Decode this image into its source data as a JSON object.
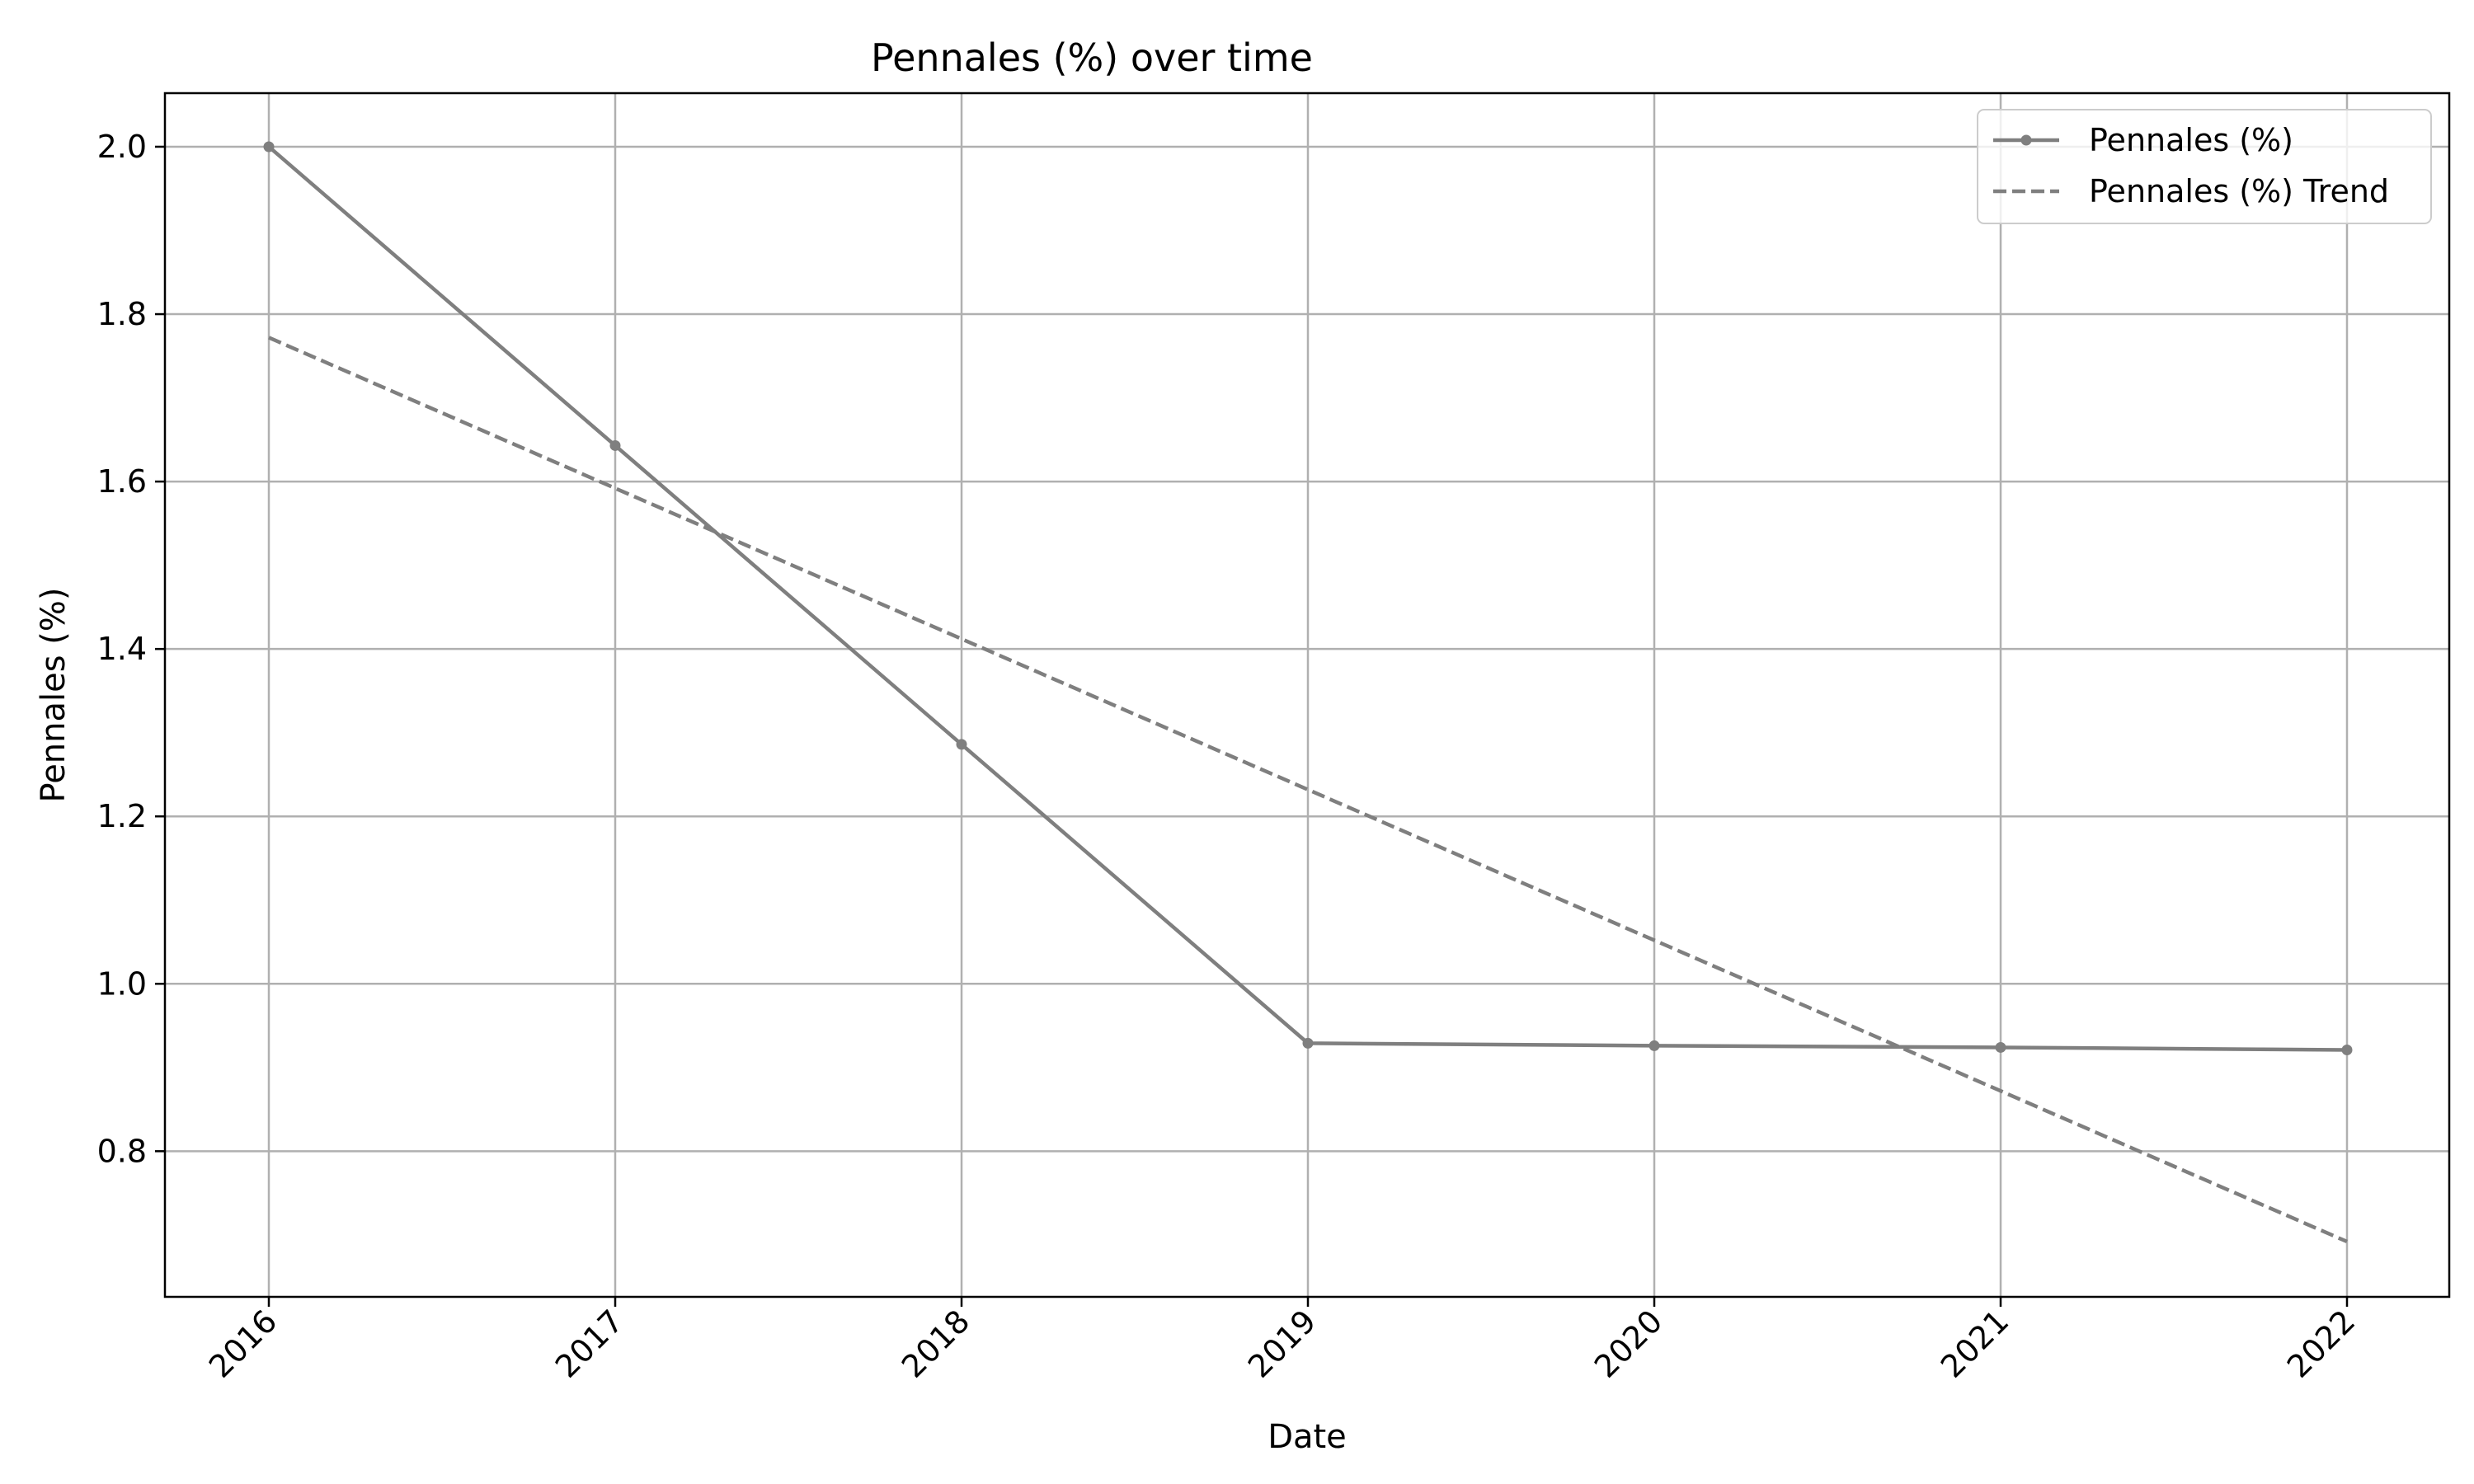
{
  "chart_data": {
    "type": "line",
    "title": "Pennales (%) over time",
    "xlabel": "Date",
    "ylabel": "Pennales (%)",
    "x": [
      "2016",
      "2017",
      "2018",
      "2019",
      "2020",
      "2021",
      "2022"
    ],
    "series": [
      {
        "name": "Pennales (%)",
        "values": [
          2.0,
          1.643,
          1.286,
          0.929,
          0.926,
          0.924,
          0.921
        ],
        "style": "solid",
        "marker": "circle",
        "color": "#7f7f7f"
      },
      {
        "name": "Pennales (%) Trend",
        "values": [
          1.772,
          1.592,
          1.412,
          1.232,
          1.052,
          0.872,
          0.692
        ],
        "style": "dashed",
        "marker": "none",
        "color": "#7f7f7f"
      }
    ],
    "ylim": [
      0.626,
      2.064
    ],
    "yticks": [
      "0.8",
      "1.0",
      "1.2",
      "1.4",
      "1.6",
      "1.8",
      "2.0"
    ],
    "grid": true,
    "legend_position": "top-right"
  }
}
